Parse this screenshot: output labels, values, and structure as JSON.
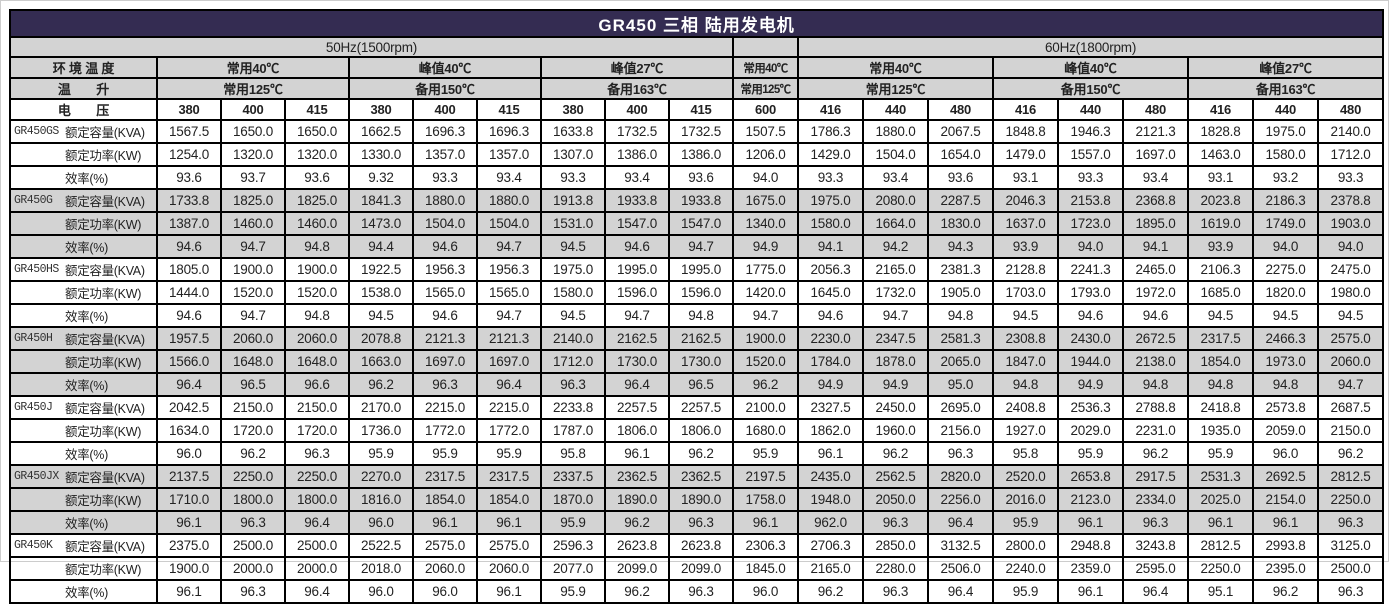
{
  "title": "GR450 三相 陆用发电机",
  "table": {
    "frequency": {
      "hz50": "50Hz(1500rpm)",
      "mid": "",
      "hz60": "60Hz(1800rpm)"
    },
    "ambient": {
      "label": "环 境 温 度",
      "g50": [
        "常用40℃",
        "峰值40℃",
        "峰值27℃"
      ],
      "mid": "常用40℃",
      "g60": [
        "常用40℃",
        "峰值40℃",
        "峰值27℃"
      ]
    },
    "rise": {
      "label": "温　　升",
      "g50": [
        "常用125℃",
        "备用150℃",
        "备用163℃"
      ],
      "mid": "常用125℃",
      "g60": [
        "常用125℃",
        "备用150℃",
        "备用163℃"
      ]
    },
    "voltage": {
      "label": "电　　压",
      "v50": [
        "380",
        "400",
        "415",
        "380",
        "400",
        "415",
        "380",
        "400",
        "415"
      ],
      "mid": "600",
      "v60": [
        "416",
        "440",
        "480",
        "416",
        "440",
        "480",
        "416",
        "440",
        "480"
      ]
    },
    "param_labels": [
      "额定容量(KVA)",
      "额定功率(KW)",
      "效率(%)"
    ],
    "models": [
      {
        "name": "GR450GS",
        "shaded": false,
        "kva": [
          "1567.5",
          "1650.0",
          "1650.0",
          "1662.5",
          "1696.3",
          "1696.3",
          "1633.8",
          "1732.5",
          "1732.5",
          "1507.5",
          "1786.3",
          "1880.0",
          "2067.5",
          "1848.8",
          "1946.3",
          "2121.3",
          "1828.8",
          "1975.0",
          "2140.0"
        ],
        "kw": [
          "1254.0",
          "1320.0",
          "1320.0",
          "1330.0",
          "1357.0",
          "1357.0",
          "1307.0",
          "1386.0",
          "1386.0",
          "1206.0",
          "1429.0",
          "1504.0",
          "1654.0",
          "1479.0",
          "1557.0",
          "1697.0",
          "1463.0",
          "1580.0",
          "1712.0"
        ],
        "eff": [
          "93.6",
          "93.7",
          "93.6",
          "9.32",
          "93.3",
          "93.4",
          "93.3",
          "93.4",
          "93.6",
          "94.0",
          "93.3",
          "93.4",
          "93.6",
          "93.1",
          "93.3",
          "93.4",
          "93.1",
          "93.2",
          "93.3"
        ]
      },
      {
        "name": "GR450G",
        "shaded": true,
        "kva": [
          "1733.8",
          "1825.0",
          "1825.0",
          "1841.3",
          "1880.0",
          "1880.0",
          "1913.8",
          "1933.8",
          "1933.8",
          "1675.0",
          "1975.0",
          "2080.0",
          "2287.5",
          "2046.3",
          "2153.8",
          "2368.8",
          "2023.8",
          "2186.3",
          "2378.8"
        ],
        "kw": [
          "1387.0",
          "1460.0",
          "1460.0",
          "1473.0",
          "1504.0",
          "1504.0",
          "1531.0",
          "1547.0",
          "1547.0",
          "1340.0",
          "1580.0",
          "1664.0",
          "1830.0",
          "1637.0",
          "1723.0",
          "1895.0",
          "1619.0",
          "1749.0",
          "1903.0"
        ],
        "eff": [
          "94.6",
          "94.7",
          "94.8",
          "94.4",
          "94.6",
          "94.7",
          "94.5",
          "94.6",
          "94.7",
          "94.9",
          "94.1",
          "94.2",
          "94.3",
          "93.9",
          "94.0",
          "94.1",
          "93.9",
          "94.0",
          "94.0"
        ]
      },
      {
        "name": "GR450HS",
        "shaded": false,
        "kva": [
          "1805.0",
          "1900.0",
          "1900.0",
          "1922.5",
          "1956.3",
          "1956.3",
          "1975.0",
          "1995.0",
          "1995.0",
          "1775.0",
          "2056.3",
          "2165.0",
          "2381.3",
          "2128.8",
          "2241.3",
          "2465.0",
          "2106.3",
          "2275.0",
          "2475.0"
        ],
        "kw": [
          "1444.0",
          "1520.0",
          "1520.0",
          "1538.0",
          "1565.0",
          "1565.0",
          "1580.0",
          "1596.0",
          "1596.0",
          "1420.0",
          "1645.0",
          "1732.0",
          "1905.0",
          "1703.0",
          "1793.0",
          "1972.0",
          "1685.0",
          "1820.0",
          "1980.0"
        ],
        "eff": [
          "94.6",
          "94.7",
          "94.8",
          "94.5",
          "94.6",
          "94.7",
          "94.5",
          "94.7",
          "94.8",
          "94.7",
          "94.6",
          "94.7",
          "94.8",
          "94.5",
          "94.6",
          "94.6",
          "94.5",
          "94.5",
          "94.5"
        ]
      },
      {
        "name": "GR450H",
        "shaded": true,
        "kva": [
          "1957.5",
          "2060.0",
          "2060.0",
          "2078.8",
          "2121.3",
          "2121.3",
          "2140.0",
          "2162.5",
          "2162.5",
          "1900.0",
          "2230.0",
          "2347.5",
          "2581.3",
          "2308.8",
          "2430.0",
          "2672.5",
          "2317.5",
          "2466.3",
          "2575.0"
        ],
        "kw": [
          "1566.0",
          "1648.0",
          "1648.0",
          "1663.0",
          "1697.0",
          "1697.0",
          "1712.0",
          "1730.0",
          "1730.0",
          "1520.0",
          "1784.0",
          "1878.0",
          "2065.0",
          "1847.0",
          "1944.0",
          "2138.0",
          "1854.0",
          "1973.0",
          "2060.0"
        ],
        "eff": [
          "96.4",
          "96.5",
          "96.6",
          "96.2",
          "96.3",
          "96.4",
          "96.3",
          "96.4",
          "96.5",
          "96.2",
          "94.9",
          "94.9",
          "95.0",
          "94.8",
          "94.9",
          "94.8",
          "94.8",
          "94.8",
          "94.7"
        ]
      },
      {
        "name": "GR450J",
        "shaded": false,
        "kva": [
          "2042.5",
          "2150.0",
          "2150.0",
          "2170.0",
          "2215.0",
          "2215.0",
          "2233.8",
          "2257.5",
          "2257.5",
          "2100.0",
          "2327.5",
          "2450.0",
          "2695.0",
          "2408.8",
          "2536.3",
          "2788.8",
          "2418.8",
          "2573.8",
          "2687.5"
        ],
        "kw": [
          "1634.0",
          "1720.0",
          "1720.0",
          "1736.0",
          "1772.0",
          "1772.0",
          "1787.0",
          "1806.0",
          "1806.0",
          "1680.0",
          "1862.0",
          "1960.0",
          "2156.0",
          "1927.0",
          "2029.0",
          "2231.0",
          "1935.0",
          "2059.0",
          "2150.0"
        ],
        "eff": [
          "96.0",
          "96.2",
          "96.3",
          "95.9",
          "95.9",
          "95.9",
          "95.8",
          "96.1",
          "96.2",
          "95.9",
          "96.1",
          "96.2",
          "96.3",
          "95.8",
          "95.9",
          "96.2",
          "95.9",
          "96.0",
          "96.2"
        ]
      },
      {
        "name": "GR450JX",
        "shaded": true,
        "kva": [
          "2137.5",
          "2250.0",
          "2250.0",
          "2270.0",
          "2317.5",
          "2317.5",
          "2337.5",
          "2362.5",
          "2362.5",
          "2197.5",
          "2435.0",
          "2562.5",
          "2820.0",
          "2520.0",
          "2653.8",
          "2917.5",
          "2531.3",
          "2692.5",
          "2812.5"
        ],
        "kw": [
          "1710.0",
          "1800.0",
          "1800.0",
          "1816.0",
          "1854.0",
          "1854.0",
          "1870.0",
          "1890.0",
          "1890.0",
          "1758.0",
          "1948.0",
          "2050.0",
          "2256.0",
          "2016.0",
          "2123.0",
          "2334.0",
          "2025.0",
          "2154.0",
          "2250.0"
        ],
        "eff": [
          "96.1",
          "96.3",
          "96.4",
          "96.0",
          "96.1",
          "96.1",
          "95.9",
          "96.2",
          "96.3",
          "96.1",
          "962.0",
          "96.3",
          "96.4",
          "95.9",
          "96.1",
          "96.3",
          "96.1",
          "96.1",
          "96.3"
        ]
      },
      {
        "name": "GR450K",
        "shaded": false,
        "kva": [
          "2375.0",
          "2500.0",
          "2500.0",
          "2522.5",
          "2575.0",
          "2575.0",
          "2596.3",
          "2623.8",
          "2623.8",
          "2306.3",
          "2706.3",
          "2850.0",
          "3132.5",
          "2800.0",
          "2948.8",
          "3243.8",
          "2812.5",
          "2993.8",
          "3125.0"
        ],
        "kw": [
          "1900.0",
          "2000.0",
          "2000.0",
          "2018.0",
          "2060.0",
          "2060.0",
          "2077.0",
          "2099.0",
          "2099.0",
          "1845.0",
          "2165.0",
          "2280.0",
          "2506.0",
          "2240.0",
          "2359.0",
          "2595.0",
          "2250.0",
          "2395.0",
          "2500.0"
        ],
        "eff": [
          "96.1",
          "96.3",
          "96.4",
          "96.0",
          "96.0",
          "96.1",
          "95.9",
          "96.2",
          "96.3",
          "96.0",
          "96.2",
          "96.3",
          "96.4",
          "95.9",
          "96.1",
          "96.4",
          "95.1",
          "96.2",
          "96.3"
        ]
      }
    ]
  },
  "colors": {
    "title_bg": "#342c52",
    "title_text": "#ffffff",
    "header_bg": "#d3d3d3",
    "shaded_row_bg": "#d3d3d3",
    "border": "#000000"
  }
}
